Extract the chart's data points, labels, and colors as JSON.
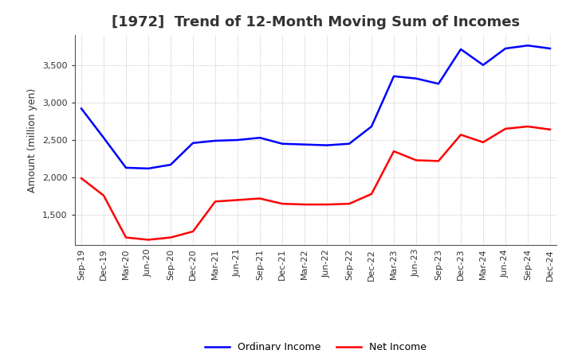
{
  "title": "[1972]  Trend of 12-Month Moving Sum of Incomes",
  "ylabel": "Amount (million yen)",
  "x_labels": [
    "Sep-19",
    "Dec-19",
    "Mar-20",
    "Jun-20",
    "Sep-20",
    "Dec-20",
    "Mar-21",
    "Jun-21",
    "Sep-21",
    "Dec-21",
    "Mar-22",
    "Jun-22",
    "Sep-22",
    "Dec-22",
    "Mar-23",
    "Jun-23",
    "Sep-23",
    "Dec-23",
    "Mar-24",
    "Jun-24",
    "Sep-24",
    "Dec-24"
  ],
  "ordinary_income": [
    2920,
    2530,
    2130,
    2120,
    2170,
    2460,
    2490,
    2500,
    2530,
    2450,
    2440,
    2430,
    2450,
    2680,
    3350,
    3320,
    3250,
    3710,
    3500,
    3720,
    3760,
    3720
  ],
  "net_income": [
    1990,
    1760,
    1200,
    1170,
    1200,
    1280,
    1680,
    1700,
    1720,
    1650,
    1640,
    1640,
    1650,
    1780,
    2350,
    2230,
    2220,
    2570,
    2470,
    2650,
    2680,
    2640
  ],
  "ordinary_color": "#0000ff",
  "net_color": "#ff0000",
  "ylim": [
    1100,
    3900
  ],
  "yticks": [
    1500,
    2000,
    2500,
    3000,
    3500
  ],
  "background_color": "#ffffff",
  "grid_color": "#b0b0b0",
  "title_fontsize": 13,
  "title_color": "#333333",
  "tick_fontsize": 8,
  "ylabel_fontsize": 9,
  "legend_labels": [
    "Ordinary Income",
    "Net Income"
  ],
  "legend_fontsize": 9
}
